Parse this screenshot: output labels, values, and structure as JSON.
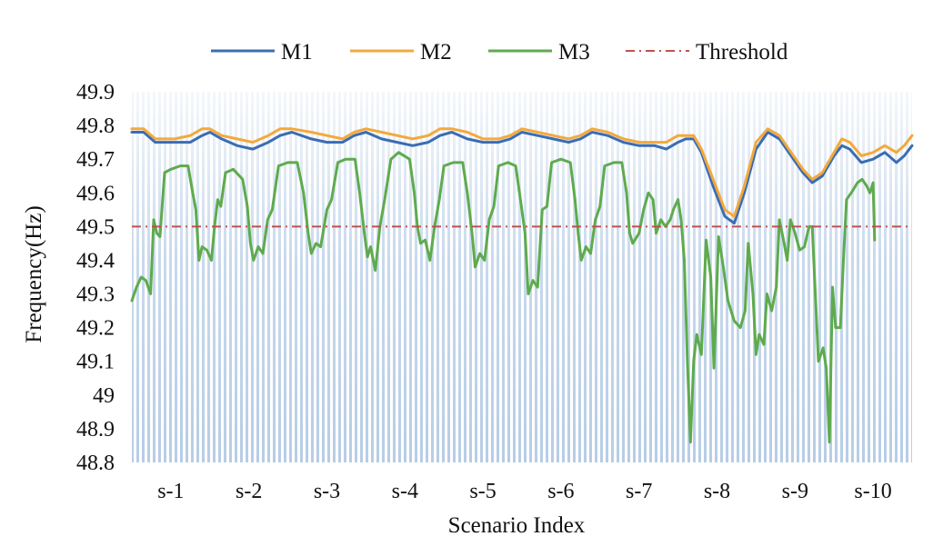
{
  "chart_data": {
    "type": "line",
    "title": "",
    "xlabel": "Scenario Index",
    "ylabel": "Frequency(Hz)",
    "ylim": [
      48.8,
      49.9
    ],
    "yticks": [
      "48.8",
      "48.9",
      "49",
      "49.1",
      "49.2",
      "49.3",
      "49.4",
      "49.5",
      "49.6",
      "49.7",
      "49.8",
      "49.9"
    ],
    "yticks_values": [
      48.8,
      48.9,
      49.0,
      49.1,
      49.2,
      49.3,
      49.4,
      49.5,
      49.6,
      49.7,
      49.8,
      49.9
    ],
    "xlim": [
      0,
      10
    ],
    "categories": [
      "s-1",
      "s-2",
      "s-3",
      "s-4",
      "s-5",
      "s-6",
      "s-7",
      "s-8",
      "s-9",
      "s-10"
    ],
    "category_positions": [
      0.5,
      1.5,
      2.5,
      3.5,
      4.5,
      5.5,
      6.5,
      7.5,
      8.5,
      9.5
    ],
    "legend_position": "top",
    "background": "vertical light-blue hatching fading toward top",
    "series": [
      {
        "name": "M1",
        "color": "#3a6db3",
        "style": "solid",
        "points": [
          [
            0,
            49.78
          ],
          [
            0.15,
            49.78
          ],
          [
            0.3,
            49.75
          ],
          [
            0.55,
            49.75
          ],
          [
            0.75,
            49.75
          ],
          [
            0.9,
            49.77
          ],
          [
            1.0,
            49.78
          ],
          [
            1.15,
            49.76
          ],
          [
            1.35,
            49.74
          ],
          [
            1.55,
            49.73
          ],
          [
            1.75,
            49.75
          ],
          [
            1.9,
            49.77
          ],
          [
            2.05,
            49.78
          ],
          [
            2.3,
            49.76
          ],
          [
            2.5,
            49.75
          ],
          [
            2.7,
            49.75
          ],
          [
            2.85,
            49.77
          ],
          [
            3.0,
            49.78
          ],
          [
            3.2,
            49.76
          ],
          [
            3.4,
            49.75
          ],
          [
            3.6,
            49.74
          ],
          [
            3.8,
            49.75
          ],
          [
            3.95,
            49.77
          ],
          [
            4.1,
            49.78
          ],
          [
            4.3,
            49.76
          ],
          [
            4.5,
            49.75
          ],
          [
            4.7,
            49.75
          ],
          [
            4.85,
            49.76
          ],
          [
            5.0,
            49.78
          ],
          [
            5.2,
            49.77
          ],
          [
            5.4,
            49.76
          ],
          [
            5.6,
            49.75
          ],
          [
            5.75,
            49.76
          ],
          [
            5.9,
            49.78
          ],
          [
            6.1,
            49.77
          ],
          [
            6.3,
            49.75
          ],
          [
            6.5,
            49.74
          ],
          [
            6.7,
            49.74
          ],
          [
            6.85,
            49.73
          ],
          [
            7.0,
            49.75
          ],
          [
            7.1,
            49.76
          ],
          [
            7.2,
            49.76
          ],
          [
            7.3,
            49.72
          ],
          [
            7.45,
            49.62
          ],
          [
            7.6,
            49.53
          ],
          [
            7.72,
            49.51
          ],
          [
            7.85,
            49.6
          ],
          [
            8.0,
            49.73
          ],
          [
            8.15,
            49.78
          ],
          [
            8.3,
            49.76
          ],
          [
            8.45,
            49.71
          ],
          [
            8.6,
            49.66
          ],
          [
            8.72,
            49.63
          ],
          [
            8.85,
            49.65
          ],
          [
            9.0,
            49.71
          ],
          [
            9.1,
            49.74
          ],
          [
            9.2,
            49.73
          ],
          [
            9.35,
            49.69
          ],
          [
            9.5,
            49.7
          ],
          [
            9.65,
            49.72
          ],
          [
            9.8,
            49.69
          ],
          [
            9.9,
            49.71
          ],
          [
            10.0,
            49.74
          ]
        ]
      },
      {
        "name": "M2",
        "color": "#f3a93c",
        "style": "solid",
        "points": [
          [
            0,
            49.79
          ],
          [
            0.15,
            49.79
          ],
          [
            0.3,
            49.76
          ],
          [
            0.55,
            49.76
          ],
          [
            0.75,
            49.77
          ],
          [
            0.9,
            49.79
          ],
          [
            1.0,
            49.79
          ],
          [
            1.15,
            49.77
          ],
          [
            1.35,
            49.76
          ],
          [
            1.55,
            49.75
          ],
          [
            1.75,
            49.77
          ],
          [
            1.9,
            49.79
          ],
          [
            2.05,
            49.79
          ],
          [
            2.3,
            49.78
          ],
          [
            2.5,
            49.77
          ],
          [
            2.7,
            49.76
          ],
          [
            2.85,
            49.78
          ],
          [
            3.0,
            49.79
          ],
          [
            3.2,
            49.78
          ],
          [
            3.4,
            49.77
          ],
          [
            3.6,
            49.76
          ],
          [
            3.8,
            49.77
          ],
          [
            3.95,
            49.79
          ],
          [
            4.1,
            49.79
          ],
          [
            4.3,
            49.78
          ],
          [
            4.5,
            49.76
          ],
          [
            4.7,
            49.76
          ],
          [
            4.85,
            49.77
          ],
          [
            5.0,
            49.79
          ],
          [
            5.2,
            49.78
          ],
          [
            5.4,
            49.77
          ],
          [
            5.6,
            49.76
          ],
          [
            5.75,
            49.77
          ],
          [
            5.9,
            49.79
          ],
          [
            6.1,
            49.78
          ],
          [
            6.3,
            49.76
          ],
          [
            6.5,
            49.75
          ],
          [
            6.7,
            49.75
          ],
          [
            6.85,
            49.75
          ],
          [
            7.0,
            49.77
          ],
          [
            7.1,
            49.77
          ],
          [
            7.2,
            49.77
          ],
          [
            7.3,
            49.73
          ],
          [
            7.45,
            49.64
          ],
          [
            7.6,
            49.55
          ],
          [
            7.72,
            49.53
          ],
          [
            7.85,
            49.62
          ],
          [
            8.0,
            49.75
          ],
          [
            8.15,
            49.79
          ],
          [
            8.3,
            49.77
          ],
          [
            8.45,
            49.72
          ],
          [
            8.6,
            49.67
          ],
          [
            8.72,
            49.64
          ],
          [
            8.85,
            49.66
          ],
          [
            9.0,
            49.72
          ],
          [
            9.1,
            49.76
          ],
          [
            9.2,
            49.75
          ],
          [
            9.35,
            49.71
          ],
          [
            9.5,
            49.72
          ],
          [
            9.65,
            49.74
          ],
          [
            9.8,
            49.72
          ],
          [
            9.9,
            49.74
          ],
          [
            10.0,
            49.77
          ]
        ]
      },
      {
        "name": "M3",
        "color": "#5eab4e",
        "style": "solid",
        "points": [
          [
            0,
            49.28
          ],
          [
            0.06,
            49.32
          ],
          [
            0.12,
            49.35
          ],
          [
            0.18,
            49.34
          ],
          [
            0.24,
            49.3
          ],
          [
            0.28,
            49.52
          ],
          [
            0.32,
            49.48
          ],
          [
            0.36,
            49.47
          ],
          [
            0.42,
            49.66
          ],
          [
            0.5,
            49.67
          ],
          [
            0.62,
            49.68
          ],
          [
            0.72,
            49.68
          ],
          [
            0.78,
            49.6
          ],
          [
            0.82,
            49.55
          ],
          [
            0.86,
            49.4
          ],
          [
            0.9,
            49.44
          ],
          [
            0.96,
            49.43
          ],
          [
            1.02,
            49.4
          ],
          [
            1.06,
            49.5
          ],
          [
            1.1,
            49.58
          ],
          [
            1.14,
            49.56
          ],
          [
            1.2,
            49.66
          ],
          [
            1.3,
            49.67
          ],
          [
            1.42,
            49.64
          ],
          [
            1.48,
            49.56
          ],
          [
            1.52,
            49.45
          ],
          [
            1.56,
            49.4
          ],
          [
            1.62,
            49.44
          ],
          [
            1.68,
            49.42
          ],
          [
            1.74,
            49.52
          ],
          [
            1.8,
            49.55
          ],
          [
            1.88,
            49.68
          ],
          [
            2.0,
            49.69
          ],
          [
            2.12,
            49.69
          ],
          [
            2.2,
            49.6
          ],
          [
            2.26,
            49.48
          ],
          [
            2.3,
            49.42
          ],
          [
            2.36,
            49.45
          ],
          [
            2.42,
            49.44
          ],
          [
            2.5,
            49.55
          ],
          [
            2.56,
            49.58
          ],
          [
            2.64,
            49.69
          ],
          [
            2.74,
            49.7
          ],
          [
            2.86,
            49.7
          ],
          [
            2.92,
            49.6
          ],
          [
            2.98,
            49.48
          ],
          [
            3.02,
            49.41
          ],
          [
            3.06,
            49.44
          ],
          [
            3.12,
            49.37
          ],
          [
            3.18,
            49.5
          ],
          [
            3.24,
            49.58
          ],
          [
            3.32,
            49.7
          ],
          [
            3.42,
            49.72
          ],
          [
            3.56,
            49.7
          ],
          [
            3.62,
            49.6
          ],
          [
            3.66,
            49.5
          ],
          [
            3.7,
            49.45
          ],
          [
            3.76,
            49.46
          ],
          [
            3.82,
            49.4
          ],
          [
            3.88,
            49.5
          ],
          [
            3.94,
            49.58
          ],
          [
            4.0,
            49.68
          ],
          [
            4.12,
            49.69
          ],
          [
            4.24,
            49.69
          ],
          [
            4.3,
            49.6
          ],
          [
            4.36,
            49.48
          ],
          [
            4.4,
            49.38
          ],
          [
            4.46,
            49.42
          ],
          [
            4.52,
            49.4
          ],
          [
            4.58,
            49.52
          ],
          [
            4.64,
            49.56
          ],
          [
            4.7,
            49.68
          ],
          [
            4.82,
            49.69
          ],
          [
            4.92,
            49.68
          ],
          [
            4.98,
            49.58
          ],
          [
            5.04,
            49.48
          ],
          [
            5.08,
            49.3
          ],
          [
            5.14,
            49.34
          ],
          [
            5.2,
            49.32
          ],
          [
            5.26,
            49.55
          ],
          [
            5.32,
            49.56
          ],
          [
            5.38,
            49.69
          ],
          [
            5.5,
            49.7
          ],
          [
            5.62,
            49.69
          ],
          [
            5.68,
            49.58
          ],
          [
            5.72,
            49.48
          ],
          [
            5.76,
            49.4
          ],
          [
            5.82,
            49.44
          ],
          [
            5.88,
            49.42
          ],
          [
            5.94,
            49.52
          ],
          [
            6.0,
            49.56
          ],
          [
            6.06,
            49.68
          ],
          [
            6.18,
            49.69
          ],
          [
            6.28,
            49.69
          ],
          [
            6.34,
            49.6
          ],
          [
            6.38,
            49.48
          ],
          [
            6.42,
            49.45
          ],
          [
            6.5,
            49.48
          ],
          [
            6.56,
            49.55
          ],
          [
            6.62,
            49.6
          ],
          [
            6.68,
            49.58
          ],
          [
            6.72,
            49.48
          ],
          [
            6.78,
            49.52
          ],
          [
            6.84,
            49.5
          ],
          [
            6.9,
            49.52
          ],
          [
            6.94,
            49.55
          ],
          [
            7.0,
            49.58
          ],
          [
            7.04,
            49.52
          ],
          [
            7.08,
            49.4
          ],
          [
            7.12,
            49.1
          ],
          [
            7.16,
            48.86
          ],
          [
            7.2,
            49.1
          ],
          [
            7.24,
            49.18
          ],
          [
            7.3,
            49.12
          ],
          [
            7.36,
            49.46
          ],
          [
            7.42,
            49.35
          ],
          [
            7.46,
            49.08
          ],
          [
            7.52,
            49.47
          ],
          [
            7.58,
            49.38
          ],
          [
            7.64,
            49.28
          ],
          [
            7.72,
            49.22
          ],
          [
            7.8,
            49.2
          ],
          [
            7.86,
            49.25
          ],
          [
            7.9,
            49.45
          ],
          [
            7.96,
            49.3
          ],
          [
            8.0,
            49.12
          ],
          [
            8.04,
            49.18
          ],
          [
            8.1,
            49.15
          ],
          [
            8.14,
            49.3
          ],
          [
            8.2,
            49.25
          ],
          [
            8.26,
            49.32
          ],
          [
            8.3,
            49.52
          ],
          [
            8.36,
            49.45
          ],
          [
            8.4,
            49.4
          ],
          [
            8.44,
            49.52
          ],
          [
            8.5,
            49.48
          ],
          [
            8.56,
            49.43
          ],
          [
            8.62,
            49.44
          ],
          [
            8.68,
            49.5
          ],
          [
            8.72,
            49.5
          ],
          [
            8.76,
            49.3
          ],
          [
            8.8,
            49.1
          ],
          [
            8.86,
            49.14
          ],
          [
            8.9,
            49.08
          ],
          [
            8.94,
            48.86
          ],
          [
            8.98,
            49.32
          ],
          [
            9.02,
            49.2
          ],
          [
            9.08,
            49.2
          ],
          [
            9.12,
            49.4
          ],
          [
            9.16,
            49.58
          ],
          [
            9.22,
            49.6
          ],
          [
            9.3,
            49.63
          ],
          [
            9.36,
            49.64
          ],
          [
            9.42,
            49.62
          ],
          [
            9.46,
            49.6
          ],
          [
            9.5,
            49.63
          ],
          [
            9.52,
            49.46
          ]
        ]
      },
      {
        "name": "Threshold",
        "color": "#c0504d",
        "style": "dash-dot",
        "points": [
          [
            0,
            49.5
          ],
          [
            10.0,
            49.5
          ]
        ]
      }
    ]
  }
}
